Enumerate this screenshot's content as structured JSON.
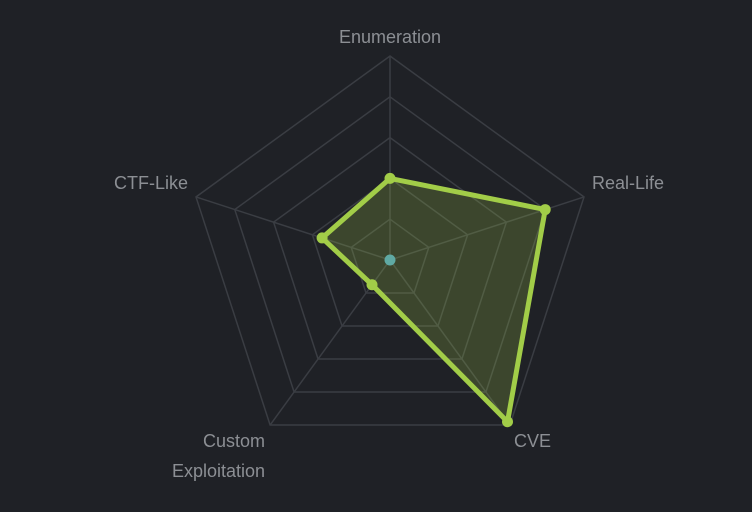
{
  "colors": {
    "background": "#1f2126",
    "grid": "#3a3d43",
    "label": "#8c8f94",
    "series_stroke": "#a2cd48",
    "series_fill": "#a2cd48",
    "center_dot": "#5fa9a3"
  },
  "chart_data": {
    "type": "radar",
    "title": "",
    "axes": [
      "Enumeration",
      "Real-Life",
      "CVE",
      "Custom Exploitation",
      "CTF-Like"
    ],
    "axis_label_lines": [
      [
        "Enumeration"
      ],
      [
        "Real-Life"
      ],
      [
        "CVE"
      ],
      [
        "Custom",
        "Exploitation"
      ],
      [
        "CTF-Like"
      ]
    ],
    "rlim": [
      0,
      10
    ],
    "grid_levels": [
      2,
      4,
      6,
      8,
      10
    ],
    "grid": true,
    "legend": "none",
    "series": [
      {
        "values": [
          4,
          8,
          9.8,
          1.5,
          3.5
        ]
      }
    ]
  }
}
